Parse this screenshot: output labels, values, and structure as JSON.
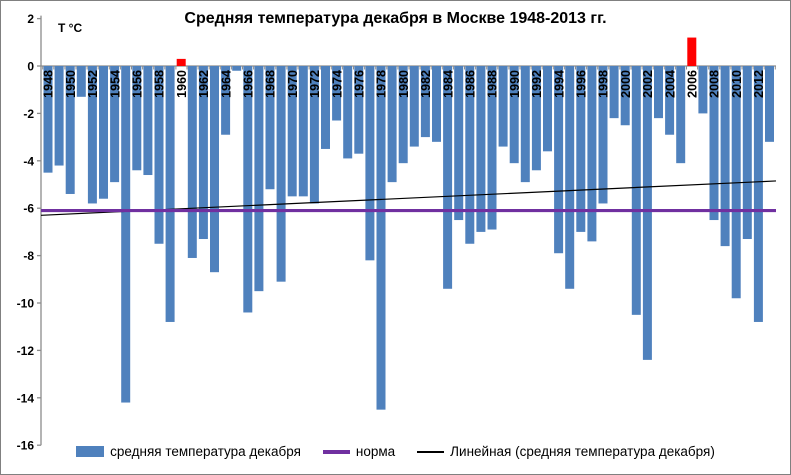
{
  "chart_data": {
    "type": "bar",
    "title": "Средняя температура декабря в Москве 1948-2013 гг.",
    "unit_label": "Т °С",
    "xlabel": "",
    "ylabel": "Т °С",
    "ylim": [
      -16,
      2
    ],
    "ytick_step": 2,
    "y_tick_labels": [
      "2",
      "0",
      "-2",
      "-4",
      "-6",
      "-8",
      "-10",
      "-12",
      "-14",
      "-16"
    ],
    "x_tick_labels": [
      "1948",
      "1950",
      "1952",
      "1954",
      "1956",
      "1958",
      "1960",
      "1962",
      "1964",
      "1966",
      "1968",
      "1970",
      "1972",
      "1974",
      "1976",
      "1978",
      "1980",
      "1982",
      "1984",
      "1986",
      "1988",
      "1990",
      "1992",
      "1994",
      "1996",
      "1998",
      "2000",
      "2002",
      "2004",
      "2006",
      "2008",
      "2010",
      "2012"
    ],
    "years": [
      1948,
      1949,
      1950,
      1951,
      1952,
      1953,
      1954,
      1955,
      1956,
      1957,
      1958,
      1959,
      1960,
      1961,
      1962,
      1963,
      1964,
      1965,
      1966,
      1967,
      1968,
      1969,
      1970,
      1971,
      1972,
      1973,
      1974,
      1975,
      1976,
      1977,
      1978,
      1979,
      1980,
      1981,
      1982,
      1983,
      1984,
      1985,
      1986,
      1987,
      1988,
      1989,
      1990,
      1991,
      1992,
      1993,
      1994,
      1995,
      1996,
      1997,
      1998,
      1999,
      2000,
      2001,
      2002,
      2003,
      2004,
      2005,
      2006,
      2007,
      2008,
      2009,
      2010,
      2011,
      2012,
      2013
    ],
    "values": [
      -4.5,
      -4.2,
      -5.4,
      -1.3,
      -5.8,
      -5.6,
      -4.9,
      -14.2,
      -4.4,
      -4.6,
      -7.5,
      -10.8,
      0.3,
      -8.1,
      -7.3,
      -8.7,
      -2.9,
      -0.2,
      -10.4,
      -9.5,
      -5.2,
      -9.1,
      -5.5,
      -5.5,
      -5.8,
      -3.5,
      -2.3,
      -3.9,
      -3.7,
      -8.2,
      -14.5,
      -4.9,
      -4.1,
      -3.4,
      -3.0,
      -3.2,
      -9.4,
      -6.5,
      -7.5,
      -7.0,
      -6.9,
      -3.4,
      -4.1,
      -4.9,
      -4.4,
      -3.6,
      -7.9,
      -9.4,
      -7.0,
      -7.4,
      -5.8,
      -2.2,
      -2.5,
      -10.5,
      -12.4,
      -2.2,
      -2.9,
      -4.1,
      1.2,
      -2.0,
      -6.5,
      -7.6,
      -9.8,
      -7.3,
      -10.8,
      -3.2
    ],
    "bar_color": "#4F81BD",
    "positive_color": "#FF0000",
    "axis_color": "#8C8C8C",
    "norm": {
      "value": -6.1,
      "color": "#7030A0"
    },
    "trend": {
      "start_value": -6.3,
      "end_value": -4.85,
      "color": "#000000"
    },
    "grid": "off",
    "legend_position": "bottom",
    "legend": [
      {
        "label": "средняя температура декабря",
        "swatch": "bar"
      },
      {
        "label": "норма",
        "swatch": "thick-line"
      },
      {
        "label": "Линейная (средняя температура декабря)",
        "swatch": "thin-line"
      }
    ]
  }
}
